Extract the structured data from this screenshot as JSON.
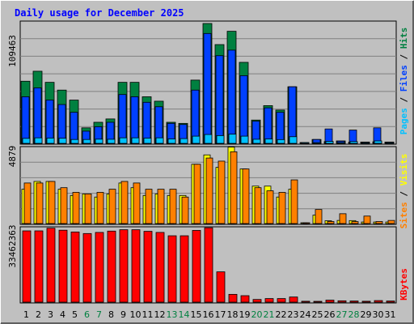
{
  "title": "Daily usage for December 2025",
  "colors": {
    "background": "#C0C0C0",
    "plot_background": "#C0C0C0",
    "grid": "#808080",
    "title": "#0000FF",
    "weekday_label": "#000000",
    "weekend_label": "#008040",
    "hits": "#008040",
    "files": "#0040FF",
    "pages": "#00C0FF",
    "visits": "#FFFF00",
    "sites": "#FF8000",
    "kbytes": "#FF0000",
    "separator": "#000000"
  },
  "chart_data": [
    {
      "type": "bar",
      "title": "Daily usage for December 2025",
      "ylabel_max": "109463",
      "ymax": 109463,
      "legend": [
        "Pages",
        "Files",
        "Hits"
      ],
      "categories": [
        "1",
        "2",
        "3",
        "4",
        "5",
        "6",
        "7",
        "8",
        "9",
        "10",
        "11",
        "12",
        "13",
        "14",
        "15",
        "16",
        "17",
        "18",
        "19",
        "20",
        "21",
        "22",
        "23",
        "24",
        "25",
        "26",
        "27",
        "28",
        "29",
        "30",
        "31"
      ],
      "weekend_days": [
        "6",
        "7",
        "13",
        "14",
        "20",
        "21",
        "27",
        "28"
      ],
      "series": [
        {
          "name": "Hits",
          "values": [
            56000,
            65000,
            55000,
            48000,
            39000,
            14000,
            19000,
            22000,
            55000,
            55000,
            42000,
            38000,
            19000,
            18000,
            57000,
            108000,
            89000,
            101000,
            73000,
            21000,
            34000,
            30000,
            51000,
            0,
            3500,
            1600,
            2200,
            1000,
            1200,
            1400,
            1200
          ]
        },
        {
          "name": "Files",
          "values": [
            42000,
            50000,
            39000,
            35000,
            28000,
            11000,
            15000,
            19000,
            44000,
            42000,
            37000,
            33000,
            18000,
            17000,
            48000,
            99000,
            79000,
            84000,
            61000,
            20000,
            32000,
            28000,
            51000,
            0,
            3500,
            13000,
            2000,
            12000,
            1000,
            14000,
            1000
          ]
        },
        {
          "name": "Pages",
          "values": [
            4500,
            5000,
            4800,
            4600,
            3500,
            3500,
            3800,
            3700,
            5000,
            5000,
            4700,
            5000,
            4000,
            4300,
            6500,
            8000,
            7000,
            8300,
            6500,
            3700,
            4000,
            3400,
            6000,
            0,
            500,
            1800,
            400,
            1600,
            300,
            2200,
            300
          ]
        }
      ]
    },
    {
      "type": "bar",
      "ylabel_max": "4879",
      "ymax": 4879,
      "legend": [
        "Sites",
        "Visits"
      ],
      "categories": [
        "1",
        "2",
        "3",
        "4",
        "5",
        "6",
        "7",
        "8",
        "9",
        "10",
        "11",
        "12",
        "13",
        "14",
        "15",
        "16",
        "17",
        "18",
        "19",
        "20",
        "21",
        "22",
        "23",
        "24",
        "25",
        "26",
        "27",
        "28",
        "29",
        "30",
        "31"
      ],
      "series": [
        {
          "name": "Visits",
          "values": [
            2200,
            2700,
            2700,
            2200,
            1800,
            1900,
            1700,
            1900,
            2600,
            2300,
            1800,
            1900,
            1800,
            1800,
            3800,
            4400,
            3600,
            4900,
            3500,
            2400,
            2400,
            1700,
            2200,
            0,
            540,
            180,
            200,
            190,
            100,
            100,
            100
          ]
        },
        {
          "name": "Sites",
          "values": [
            2600,
            2600,
            2700,
            2300,
            2000,
            1900,
            2000,
            2200,
            2700,
            2600,
            2200,
            2200,
            2200,
            1700,
            3800,
            4200,
            4000,
            4600,
            3500,
            2300,
            2100,
            2000,
            2800,
            0,
            900,
            130,
            630,
            125,
            480,
            130,
            200
          ]
        }
      ]
    },
    {
      "type": "bar",
      "ylabel_max": "33462363",
      "ymax": 33462363,
      "legend": [
        "KBytes"
      ],
      "categories": [
        "1",
        "2",
        "3",
        "4",
        "5",
        "6",
        "7",
        "8",
        "9",
        "10",
        "11",
        "12",
        "13",
        "14",
        "15",
        "16",
        "17",
        "18",
        "19",
        "20",
        "21",
        "22",
        "23",
        "24",
        "25",
        "26",
        "27",
        "28",
        "29",
        "30",
        "31"
      ],
      "series": [
        {
          "name": "KBytes",
          "values": [
            32000000,
            32000000,
            33200000,
            32300000,
            31500000,
            30800000,
            31300000,
            31900000,
            32500000,
            32500000,
            31800000,
            31300000,
            29800000,
            29800000,
            32200000,
            33400000,
            13600000,
            3500000,
            2900000,
            1200000,
            1600000,
            1600000,
            2300000,
            400000,
            300000,
            900000,
            600000,
            500000,
            400000,
            700000,
            500000
          ]
        }
      ]
    }
  ]
}
